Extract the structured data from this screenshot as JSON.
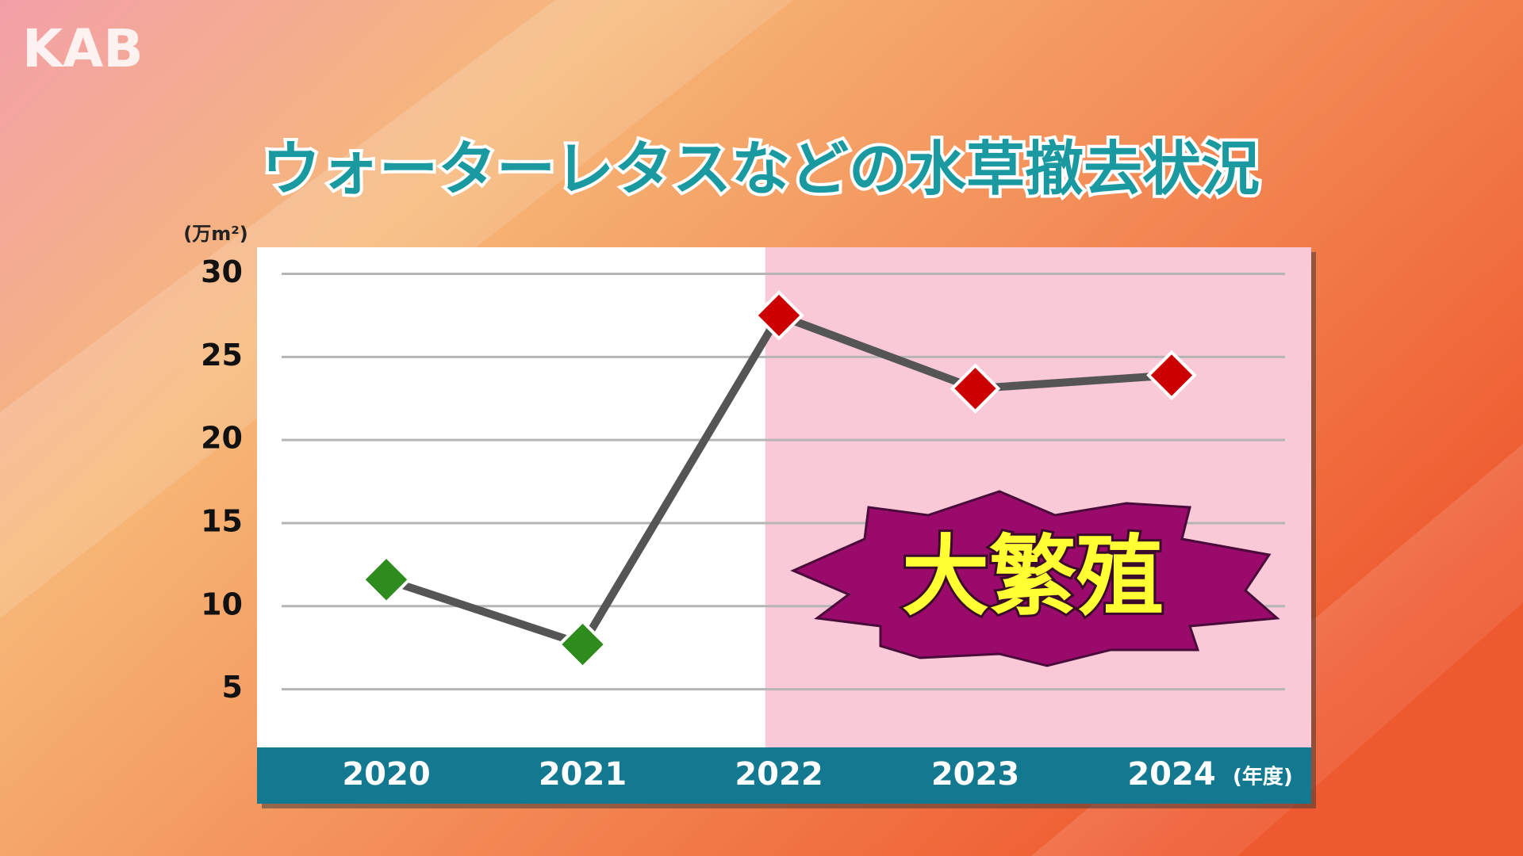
{
  "logo": "KAB",
  "chart_data": {
    "type": "line",
    "title": "ウォーターレタスなどの水草撤去状況",
    "y_unit": "(万m²)",
    "x_unit": "(年度)",
    "annotation": "大繁殖",
    "categories": [
      "2020",
      "2021",
      "2022",
      "2023",
      "2024"
    ],
    "values": [
      11.6,
      7.7,
      27.5,
      23.1,
      23.9
    ],
    "point_colors": [
      "#2e8b1e",
      "#2e8b1e",
      "#cc0000",
      "#cc0000",
      "#cc0000"
    ],
    "line_color": "#555555",
    "highlight": {
      "from": 2,
      "color": "#f9c9d7"
    },
    "ylim": [
      1.5,
      31.6
    ],
    "yticks": [
      5,
      10,
      15,
      20,
      25,
      30
    ],
    "grid": true
  }
}
